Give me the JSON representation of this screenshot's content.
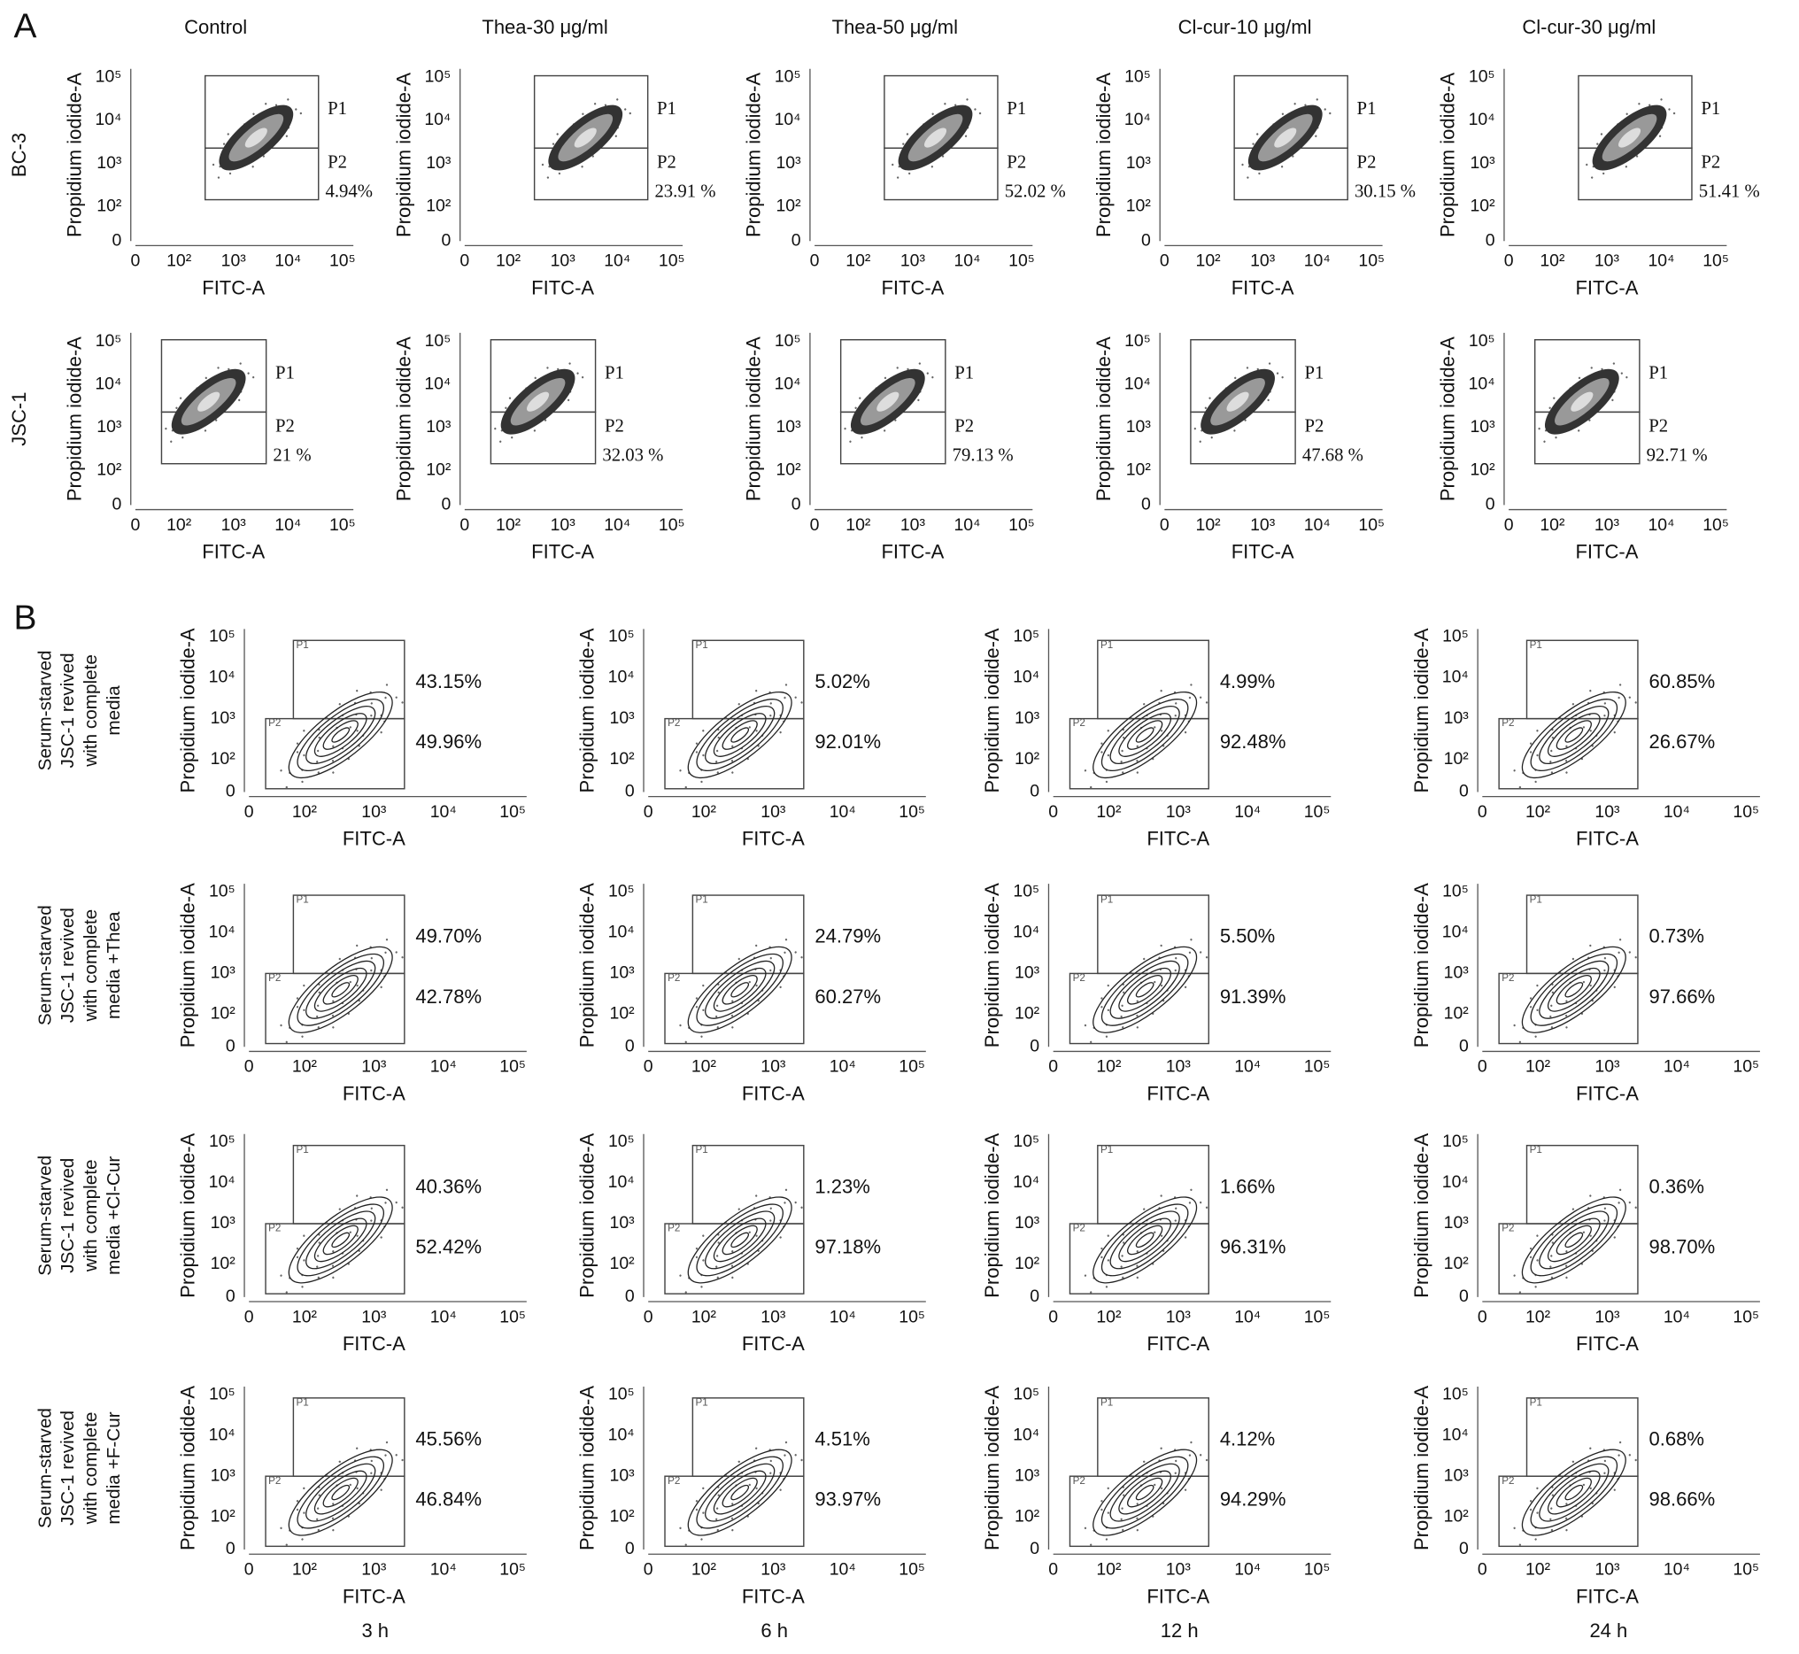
{
  "panel_a": {
    "label": "A",
    "x_label": "FITC-A",
    "y_label": "Propidium iodide-A",
    "ticks": [
      "0",
      "10²",
      "10³",
      "10⁴",
      "10⁵"
    ],
    "gate_labels": [
      "P1",
      "P2"
    ],
    "columns": [
      "Control",
      "Thea-30 μg/ml",
      "Thea-50 μg/ml",
      "Cl-cur-10 μg/ml",
      "Cl-cur-30 μg/ml"
    ],
    "rows": [
      {
        "label": "BC-3",
        "p2_percent": [
          "4.94%",
          "23.91 %",
          "52.02 %",
          "30.15 %",
          "51.41 %"
        ]
      },
      {
        "label": "JSC-1",
        "p2_percent": [
          "21 %",
          "32.03 %",
          "79.13 %",
          "47.68 %",
          "92.71 %"
        ]
      }
    ]
  },
  "panel_b": {
    "label": "B",
    "x_label": "FITC-A",
    "y_label": "Propidium iodide-A",
    "ticks": [
      "0",
      "10²",
      "10³",
      "10⁴",
      "10⁵"
    ],
    "gate_labels": [
      "P1",
      "P2"
    ],
    "columns": [
      "3 h",
      "6 h",
      "12 h",
      "24 h"
    ],
    "rows": [
      {
        "label": [
          "Serum-starved",
          "JSC-1 revived",
          "with complete",
          "media"
        ],
        "p1_percent": [
          "43.15%",
          "5.02%",
          "4.99%",
          "60.85%"
        ],
        "p2_percent": [
          "49.96%",
          "92.01%",
          "92.48%",
          "26.67%"
        ]
      },
      {
        "label": [
          "Serum-starved",
          "JSC-1 revived",
          "with complete",
          "media +Thea"
        ],
        "p1_percent": [
          "49.70%",
          "24.79%",
          "5.50%",
          "0.73%"
        ],
        "p2_percent": [
          "42.78%",
          "60.27%",
          "91.39%",
          "97.66%"
        ]
      },
      {
        "label": [
          "Serum-starved",
          "JSC-1 revived",
          "with complete",
          "media +Cl-Cur"
        ],
        "p1_percent": [
          "40.36%",
          "1.23%",
          "1.66%",
          "0.36%"
        ],
        "p2_percent": [
          "52.42%",
          "97.18%",
          "96.31%",
          "98.70%"
        ]
      },
      {
        "label": [
          "Serum-starved",
          "JSC-1 revived",
          "with complete",
          "media +F-Cur"
        ],
        "p1_percent": [
          "45.56%",
          "4.51%",
          "4.12%",
          "0.68%"
        ],
        "p2_percent": [
          "46.84%",
          "93.97%",
          "94.29%",
          "98.66%"
        ]
      }
    ]
  }
}
